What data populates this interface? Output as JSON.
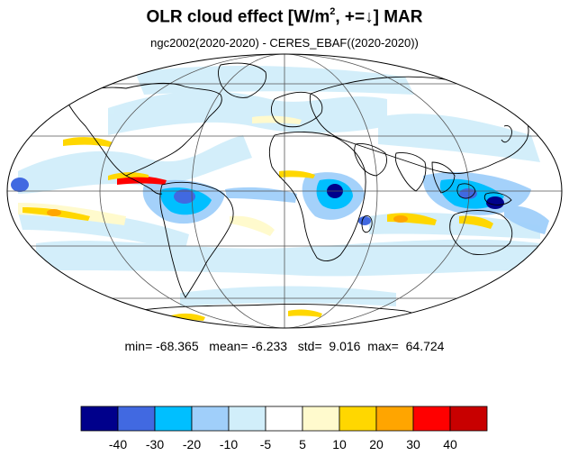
{
  "title": {
    "main": "OLR cloud effect [W/m",
    "sup": "2",
    "rest": ", +=↓]  MAR"
  },
  "subtitle": "ngc2002(2020-2020) - CERES_EBAF((2020-2020))",
  "stats": {
    "min_label": "min=",
    "min": "-68.365",
    "mean_label": "mean=",
    "mean": "-6.233",
    "std_label": "std=",
    "std": "9.016",
    "max_label": "max=",
    "max": "64.724"
  },
  "colorbar": {
    "colors": [
      "#00008b",
      "#4169e1",
      "#00bfff",
      "#a0cffa",
      "#d1eefa",
      "#ffffff",
      "#fffacd",
      "#ffd700",
      "#ffa500",
      "#ff0000",
      "#c80000"
    ],
    "ticks": [
      "-40",
      "-30",
      "-20",
      "-10",
      "-5",
      "5",
      "10",
      "20",
      "30",
      "40"
    ]
  },
  "map": {
    "projection": "mollweide",
    "ocean_background": "#ffffff",
    "coastline_color": "#000000",
    "grid_color": "#555555"
  }
}
